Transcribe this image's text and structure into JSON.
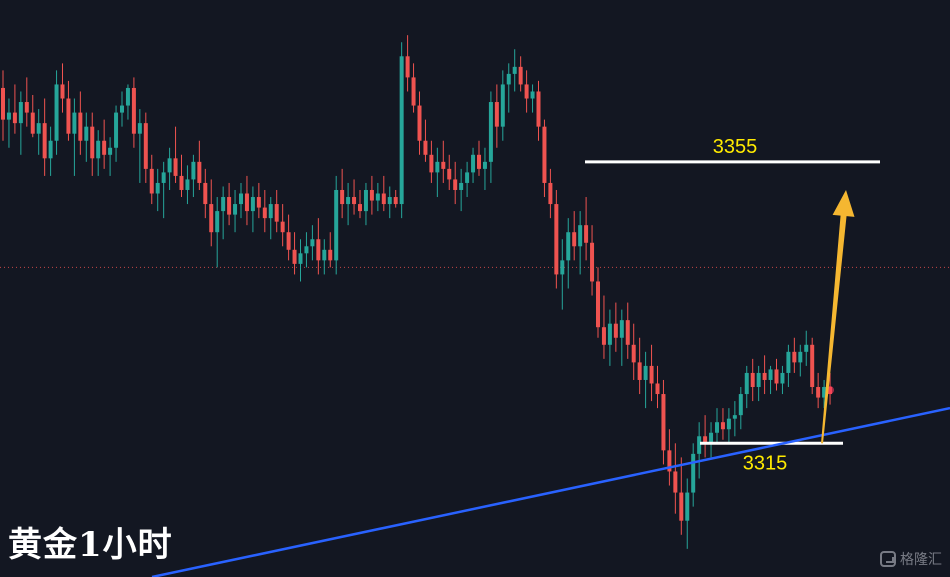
{
  "chart_data": {
    "type": "candlestick",
    "title": "黄金1小时",
    "y_range": [
      3296,
      3378
    ],
    "current_price_line": 3340,
    "levels": [
      {
        "name": "resistance",
        "value": 3355,
        "label": "3355"
      },
      {
        "name": "support",
        "value": 3315,
        "label": "3315"
      }
    ],
    "trendline": {
      "start": [
        0.16,
        3296
      ],
      "end": [
        1.0,
        3320
      ]
    },
    "forecast_arrow": {
      "from": 3315,
      "to": 3351
    },
    "colors": {
      "up": "#26a69a",
      "down": "#ef5350",
      "resistance": "#ffffff",
      "support": "#ffffff",
      "trendline": "#2962ff",
      "arrow": "#f5b731",
      "label": "#ffea00"
    },
    "candles": [
      [
        3365.5,
        3368,
        3358,
        3361
      ],
      [
        3361,
        3364,
        3357,
        3362
      ],
      [
        3362,
        3366,
        3359,
        3360.5
      ],
      [
        3360.5,
        3365,
        3356,
        3363.5
      ],
      [
        3363.5,
        3367,
        3360,
        3362
      ],
      [
        3362,
        3364.5,
        3358.5,
        3359
      ],
      [
        3359,
        3362.5,
        3356,
        3360.5
      ],
      [
        3360.5,
        3364,
        3353,
        3355.5
      ],
      [
        3355.5,
        3360,
        3353,
        3358
      ],
      [
        3358,
        3368,
        3356,
        3366
      ],
      [
        3366,
        3369,
        3362,
        3364
      ],
      [
        3364,
        3366.5,
        3358,
        3359
      ],
      [
        3359,
        3364,
        3353,
        3362
      ],
      [
        3362,
        3365,
        3356,
        3358
      ],
      [
        3358,
        3362,
        3355,
        3360
      ],
      [
        3360,
        3362,
        3353,
        3355.5
      ],
      [
        3355.5,
        3359.5,
        3353,
        3358
      ],
      [
        3358,
        3361,
        3354,
        3356
      ],
      [
        3356,
        3358.5,
        3353,
        3357
      ],
      [
        3357,
        3363,
        3355,
        3362
      ],
      [
        3362,
        3365,
        3360,
        3363
      ],
      [
        3363,
        3366,
        3361,
        3365.5
      ],
      [
        3365.5,
        3367,
        3357,
        3359
      ],
      [
        3359,
        3362.5,
        3352,
        3360.5
      ],
      [
        3360.5,
        3362,
        3352,
        3354
      ],
      [
        3354,
        3356,
        3349,
        3350.5
      ],
      [
        3350.5,
        3354,
        3348,
        3352
      ],
      [
        3352,
        3355,
        3347,
        3353.5
      ],
      [
        3353.5,
        3357,
        3351,
        3355.5
      ],
      [
        3355.5,
        3360,
        3352,
        3353
      ],
      [
        3353,
        3356,
        3350,
        3351
      ],
      [
        3351,
        3354.5,
        3349,
        3352.5
      ],
      [
        3352.5,
        3356,
        3350,
        3355
      ],
      [
        3355,
        3358,
        3351,
        3352
      ],
      [
        3352,
        3354,
        3347,
        3349
      ],
      [
        3349,
        3352.5,
        3343,
        3345
      ],
      [
        3345,
        3350,
        3340,
        3348
      ],
      [
        3348,
        3351.5,
        3344,
        3350
      ],
      [
        3350,
        3352,
        3346,
        3347.5
      ],
      [
        3347.5,
        3351,
        3345,
        3349
      ],
      [
        3349,
        3352,
        3347,
        3350.5
      ],
      [
        3350.5,
        3353,
        3346,
        3348
      ],
      [
        3348,
        3351.5,
        3345,
        3350
      ],
      [
        3350,
        3352,
        3347,
        3348.5
      ],
      [
        3348.5,
        3351,
        3345,
        3347
      ],
      [
        3347,
        3350,
        3344,
        3349
      ],
      [
        3349,
        3351,
        3345,
        3346.5
      ],
      [
        3346.5,
        3349,
        3343,
        3345
      ],
      [
        3345,
        3347.5,
        3341,
        3342.5
      ],
      [
        3342.5,
        3345,
        3339,
        3340.5
      ],
      [
        3340.5,
        3344,
        3338,
        3342
      ],
      [
        3342,
        3345,
        3340,
        3343
      ],
      [
        3343,
        3346,
        3341,
        3344
      ],
      [
        3344,
        3347,
        3339,
        3341
      ],
      [
        3341,
        3344,
        3339,
        3342.5
      ],
      [
        3342.5,
        3345,
        3340,
        3341
      ],
      [
        3341,
        3353,
        3339,
        3351
      ],
      [
        3351,
        3354,
        3347,
        3349
      ],
      [
        3349,
        3352,
        3346,
        3350
      ],
      [
        3350,
        3352.5,
        3347.5,
        3349
      ],
      [
        3349,
        3351,
        3347,
        3348
      ],
      [
        3348,
        3352,
        3346,
        3351
      ],
      [
        3351,
        3353,
        3347.5,
        3349.5
      ],
      [
        3349.5,
        3352,
        3348,
        3350.5
      ],
      [
        3350.5,
        3353,
        3348,
        3349
      ],
      [
        3349,
        3351.5,
        3347,
        3350
      ],
      [
        3350,
        3351,
        3348.5,
        3349
      ],
      [
        3349,
        3372,
        3347,
        3370
      ],
      [
        3370,
        3373,
        3365,
        3367
      ],
      [
        3367,
        3369,
        3362,
        3363
      ],
      [
        3363,
        3365,
        3356,
        3358
      ],
      [
        3358,
        3361,
        3355,
        3356
      ],
      [
        3356,
        3358,
        3352,
        3353.5
      ],
      [
        3353.5,
        3357,
        3350,
        3355
      ],
      [
        3355,
        3358,
        3352,
        3354
      ],
      [
        3354,
        3356,
        3351,
        3352.5
      ],
      [
        3352.5,
        3355,
        3349,
        3351
      ],
      [
        3351,
        3354,
        3348,
        3352
      ],
      [
        3352,
        3355,
        3350,
        3353.5
      ],
      [
        3353.5,
        3357,
        3352,
        3356
      ],
      [
        3356,
        3358,
        3353,
        3354
      ],
      [
        3354,
        3357,
        3351,
        3355
      ],
      [
        3355,
        3365,
        3352,
        3363.5
      ],
      [
        3363.5,
        3366,
        3357,
        3360
      ],
      [
        3360,
        3368,
        3358,
        3366
      ],
      [
        3366,
        3369,
        3362,
        3367.5
      ],
      [
        3367.5,
        3371,
        3365,
        3368.5
      ],
      [
        3368.5,
        3370,
        3365,
        3366
      ],
      [
        3366,
        3368,
        3362,
        3364
      ],
      [
        3364,
        3366,
        3362,
        3365
      ],
      [
        3365,
        3366.5,
        3358,
        3360
      ],
      [
        3360,
        3361,
        3350,
        3352
      ],
      [
        3352,
        3354,
        3347,
        3349
      ],
      [
        3349,
        3351,
        3337,
        3339
      ],
      [
        3339,
        3344,
        3334,
        3341
      ],
      [
        3341,
        3347,
        3337,
        3345
      ],
      [
        3345,
        3348,
        3341,
        3343
      ],
      [
        3343,
        3348,
        3339,
        3346
      ],
      [
        3346,
        3350,
        3341,
        3343.5
      ],
      [
        3343.5,
        3346,
        3336,
        3338
      ],
      [
        3338,
        3340,
        3330,
        3331.5
      ],
      [
        3331.5,
        3336,
        3327,
        3329
      ],
      [
        3329,
        3334,
        3326,
        3332
      ],
      [
        3332,
        3335,
        3328,
        3330
      ],
      [
        3330,
        3334,
        3326,
        3332.5
      ],
      [
        3332.5,
        3335,
        3327,
        3329
      ],
      [
        3329,
        3332,
        3324,
        3326.5
      ],
      [
        3326.5,
        3330,
        3322,
        3324
      ],
      [
        3324,
        3328,
        3320,
        3326
      ],
      [
        3326,
        3329,
        3321,
        3323.5
      ],
      [
        3323.5,
        3326,
        3320,
        3322
      ],
      [
        3322,
        3324,
        3312,
        3314
      ],
      [
        3314,
        3317,
        3309,
        3311
      ],
      [
        3311,
        3315,
        3305,
        3308
      ],
      [
        3308,
        3313,
        3302,
        3304
      ],
      [
        3304,
        3310,
        3300,
        3308
      ],
      [
        3308,
        3315,
        3306,
        3313.5
      ],
      [
        3313.5,
        3318,
        3310,
        3316
      ],
      [
        3316,
        3319,
        3313,
        3315
      ],
      [
        3315,
        3318,
        3313,
        3316.5
      ],
      [
        3316.5,
        3320,
        3315,
        3318
      ],
      [
        3318,
        3320,
        3315.5,
        3317
      ],
      [
        3317,
        3320,
        3315,
        3318.5
      ],
      [
        3318.5,
        3321,
        3316,
        3319
      ],
      [
        3319,
        3323,
        3317,
        3322
      ],
      [
        3322,
        3326,
        3320,
        3325
      ],
      [
        3325,
        3327,
        3321,
        3323
      ],
      [
        3323,
        3326,
        3321,
        3325
      ],
      [
        3325,
        3327.5,
        3322,
        3324
      ],
      [
        3324,
        3326,
        3322,
        3325.5
      ],
      [
        3325.5,
        3327,
        3322.5,
        3323.5
      ],
      [
        3323.5,
        3326,
        3322,
        3325
      ],
      [
        3325,
        3329,
        3323,
        3328
      ],
      [
        3328,
        3330,
        3325,
        3326.5
      ],
      [
        3326.5,
        3329,
        3324.5,
        3328
      ],
      [
        3328,
        3331,
        3326,
        3329
      ],
      [
        3329,
        3330,
        3322,
        3323
      ],
      [
        3323,
        3325,
        3320,
        3321.5
      ],
      [
        3321.5,
        3324,
        3320,
        3323
      ],
      [
        3323,
        3325,
        3320.5,
        3322
      ]
    ]
  }
}
